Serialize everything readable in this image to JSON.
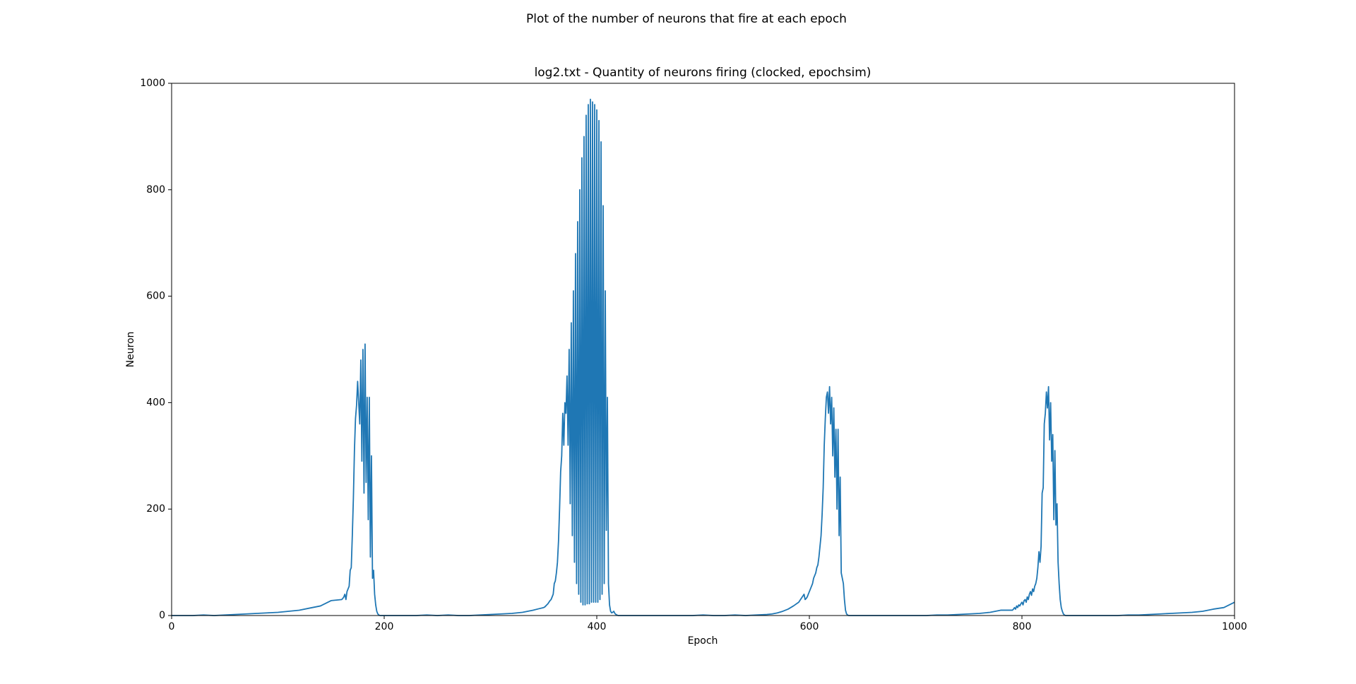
{
  "chart_data": {
    "type": "line",
    "suptitle": "Plot of the number of neurons that fire at each epoch",
    "title": "log2.txt - Quantity of neurons firing (clocked, epochsim)",
    "xlabel": "Epoch",
    "ylabel": "Neuron",
    "xlim": [
      0,
      1000
    ],
    "ylim": [
      0,
      1000
    ],
    "xticks": [
      0,
      200,
      400,
      600,
      800,
      1000
    ],
    "yticks": [
      0,
      200,
      400,
      600,
      800,
      1000
    ],
    "grid": false,
    "series": [
      {
        "color": "#1f77b4",
        "x": [
          0,
          10,
          20,
          30,
          40,
          50,
          60,
          70,
          80,
          90,
          100,
          110,
          120,
          130,
          140,
          150,
          160,
          161,
          162,
          163,
          164,
          165,
          166,
          167,
          168,
          169,
          170,
          171,
          172,
          173,
          174,
          175,
          176,
          177,
          178,
          179,
          180,
          181,
          182,
          183,
          184,
          185,
          186,
          187,
          188,
          189,
          190,
          191,
          192,
          193,
          194,
          195,
          196,
          197,
          198,
          199,
          200,
          210,
          220,
          230,
          240,
          250,
          260,
          270,
          280,
          290,
          300,
          310,
          320,
          330,
          340,
          350,
          351,
          352,
          353,
          354,
          355,
          356,
          357,
          358,
          359,
          360,
          361,
          362,
          363,
          364,
          365,
          366,
          367,
          368,
          369,
          370,
          371,
          372,
          373,
          374,
          375,
          376,
          377,
          378,
          379,
          380,
          381,
          382,
          383,
          384,
          385,
          386,
          387,
          388,
          389,
          390,
          391,
          392,
          393,
          394,
          395,
          396,
          397,
          398,
          399,
          400,
          401,
          402,
          403,
          404,
          405,
          406,
          407,
          408,
          409,
          410,
          411,
          412,
          413,
          414,
          415,
          416,
          417,
          418,
          419,
          420,
          430,
          440,
          450,
          460,
          470,
          480,
          490,
          500,
          510,
          520,
          530,
          540,
          550,
          560,
          565,
          570,
          575,
          580,
          585,
          590,
          595,
          596,
          597,
          598,
          599,
          600,
          601,
          602,
          603,
          604,
          605,
          606,
          607,
          608,
          609,
          610,
          611,
          612,
          613,
          614,
          615,
          616,
          617,
          618,
          619,
          620,
          621,
          622,
          623,
          624,
          625,
          626,
          627,
          628,
          629,
          630,
          631,
          632,
          633,
          634,
          635,
          636,
          637,
          638,
          639,
          640,
          650,
          660,
          670,
          680,
          690,
          700,
          710,
          720,
          730,
          740,
          750,
          760,
          770,
          780,
          791,
          792,
          793,
          794,
          795,
          796,
          797,
          798,
          799,
          800,
          801,
          802,
          803,
          804,
          805,
          806,
          807,
          808,
          809,
          810,
          811,
          812,
          813,
          814,
          815,
          816,
          817,
          818,
          819,
          820,
          821,
          822,
          823,
          824,
          825,
          826,
          827,
          828,
          829,
          830,
          831,
          832,
          833,
          834,
          835,
          836,
          837,
          838,
          839,
          840,
          841,
          842,
          843,
          844,
          845,
          846,
          847,
          848,
          849,
          850,
          851,
          852,
          853,
          854,
          855,
          856,
          857,
          858,
          859,
          860,
          870,
          880,
          890,
          900,
          910,
          920,
          930,
          940,
          950,
          960,
          970,
          980,
          990,
          1000
        ],
        "values": [
          0,
          0,
          0,
          1,
          0,
          1,
          2,
          3,
          4,
          5,
          6,
          8,
          10,
          14,
          18,
          28,
          30,
          32,
          35,
          40,
          30,
          45,
          50,
          55,
          85,
          90,
          150,
          220,
          310,
          370,
          395,
          440,
          400,
          360,
          480,
          290,
          500,
          230,
          510,
          250,
          410,
          180,
          410,
          110,
          300,
          70,
          85,
          40,
          20,
          8,
          3,
          1,
          0,
          0,
          0,
          0,
          0,
          0,
          0,
          0,
          1,
          0,
          1,
          0,
          0,
          1,
          2,
          3,
          4,
          6,
          10,
          15,
          16,
          18,
          20,
          22,
          25,
          28,
          30,
          35,
          40,
          60,
          65,
          80,
          100,
          140,
          200,
          270,
          300,
          380,
          320,
          400,
          380,
          450,
          320,
          500,
          210,
          550,
          150,
          610,
          100,
          680,
          60,
          740,
          40,
          800,
          25,
          860,
          20,
          900,
          20,
          940,
          22,
          960,
          22,
          970,
          25,
          965,
          25,
          960,
          25,
          950,
          25,
          930,
          30,
          890,
          40,
          770,
          60,
          610,
          160,
          410,
          60,
          20,
          8,
          5,
          6,
          8,
          4,
          2,
          1,
          0,
          0,
          0,
          0,
          0,
          0,
          0,
          0,
          1,
          0,
          0,
          1,
          0,
          1,
          2,
          3,
          5,
          8,
          12,
          18,
          25,
          40,
          30,
          32,
          35,
          40,
          45,
          50,
          55,
          60,
          70,
          75,
          80,
          90,
          95,
          110,
          130,
          150,
          190,
          240,
          320,
          370,
          410,
          420,
          380,
          430,
          360,
          410,
          300,
          390,
          260,
          350,
          200,
          350,
          150,
          260,
          80,
          70,
          60,
          30,
          10,
          3,
          1,
          0,
          0,
          0,
          0,
          0,
          0,
          0,
          0,
          0,
          0,
          0,
          1,
          1,
          2,
          3,
          4,
          6,
          10,
          10,
          12,
          15,
          12,
          18,
          15,
          20,
          18,
          22,
          25,
          20,
          28,
          30,
          25,
          35,
          30,
          40,
          45,
          38,
          50,
          45,
          55,
          60,
          70,
          90,
          120,
          100,
          130,
          230,
          240,
          360,
          380,
          420,
          390,
          430,
          330,
          400,
          290,
          340,
          180,
          310,
          170,
          210,
          100,
          60,
          30,
          15,
          8,
          3,
          1,
          0,
          0,
          0,
          0,
          0,
          0,
          0,
          0,
          0,
          0,
          0,
          0,
          0,
          0,
          0,
          0,
          0,
          0,
          0,
          0,
          0,
          0,
          0,
          1,
          1,
          2,
          3,
          4,
          5,
          6,
          8,
          12,
          15,
          25
        ]
      }
    ]
  }
}
